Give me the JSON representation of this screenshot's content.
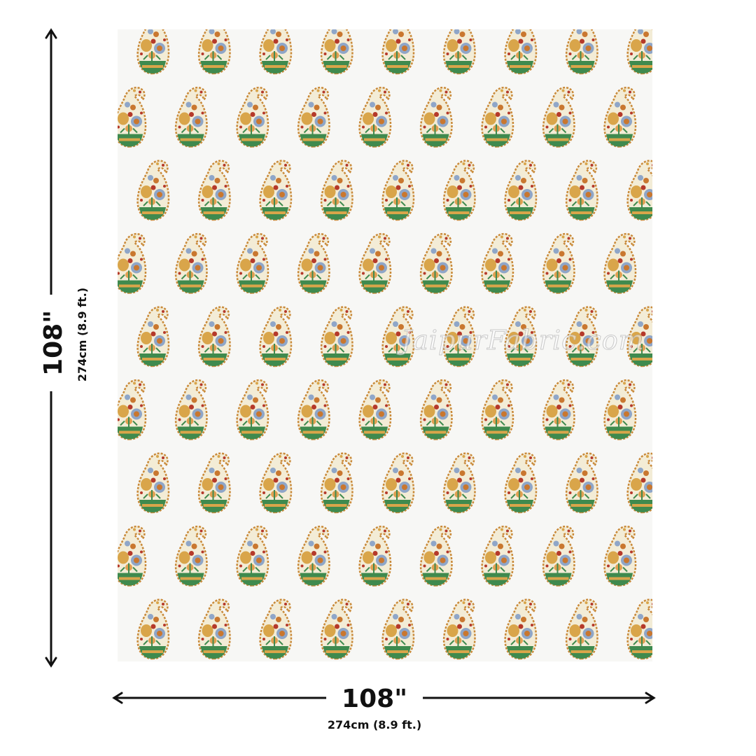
{
  "width_dimension": {
    "main": "108\"",
    "sub": "274cm (8.9 ft.)"
  },
  "height_dimension": {
    "main": "108\"",
    "sub": "274cm (8.9 ft.)"
  },
  "watermark": "JaipurFabric.com",
  "colors": {
    "background": "#f7f7f5",
    "paisley_gold": "#d9a54a",
    "paisley_red": "#b5392a",
    "paisley_green": "#3f8a4e",
    "paisley_blue": "#8fa6c8",
    "arrow": "#111111"
  }
}
